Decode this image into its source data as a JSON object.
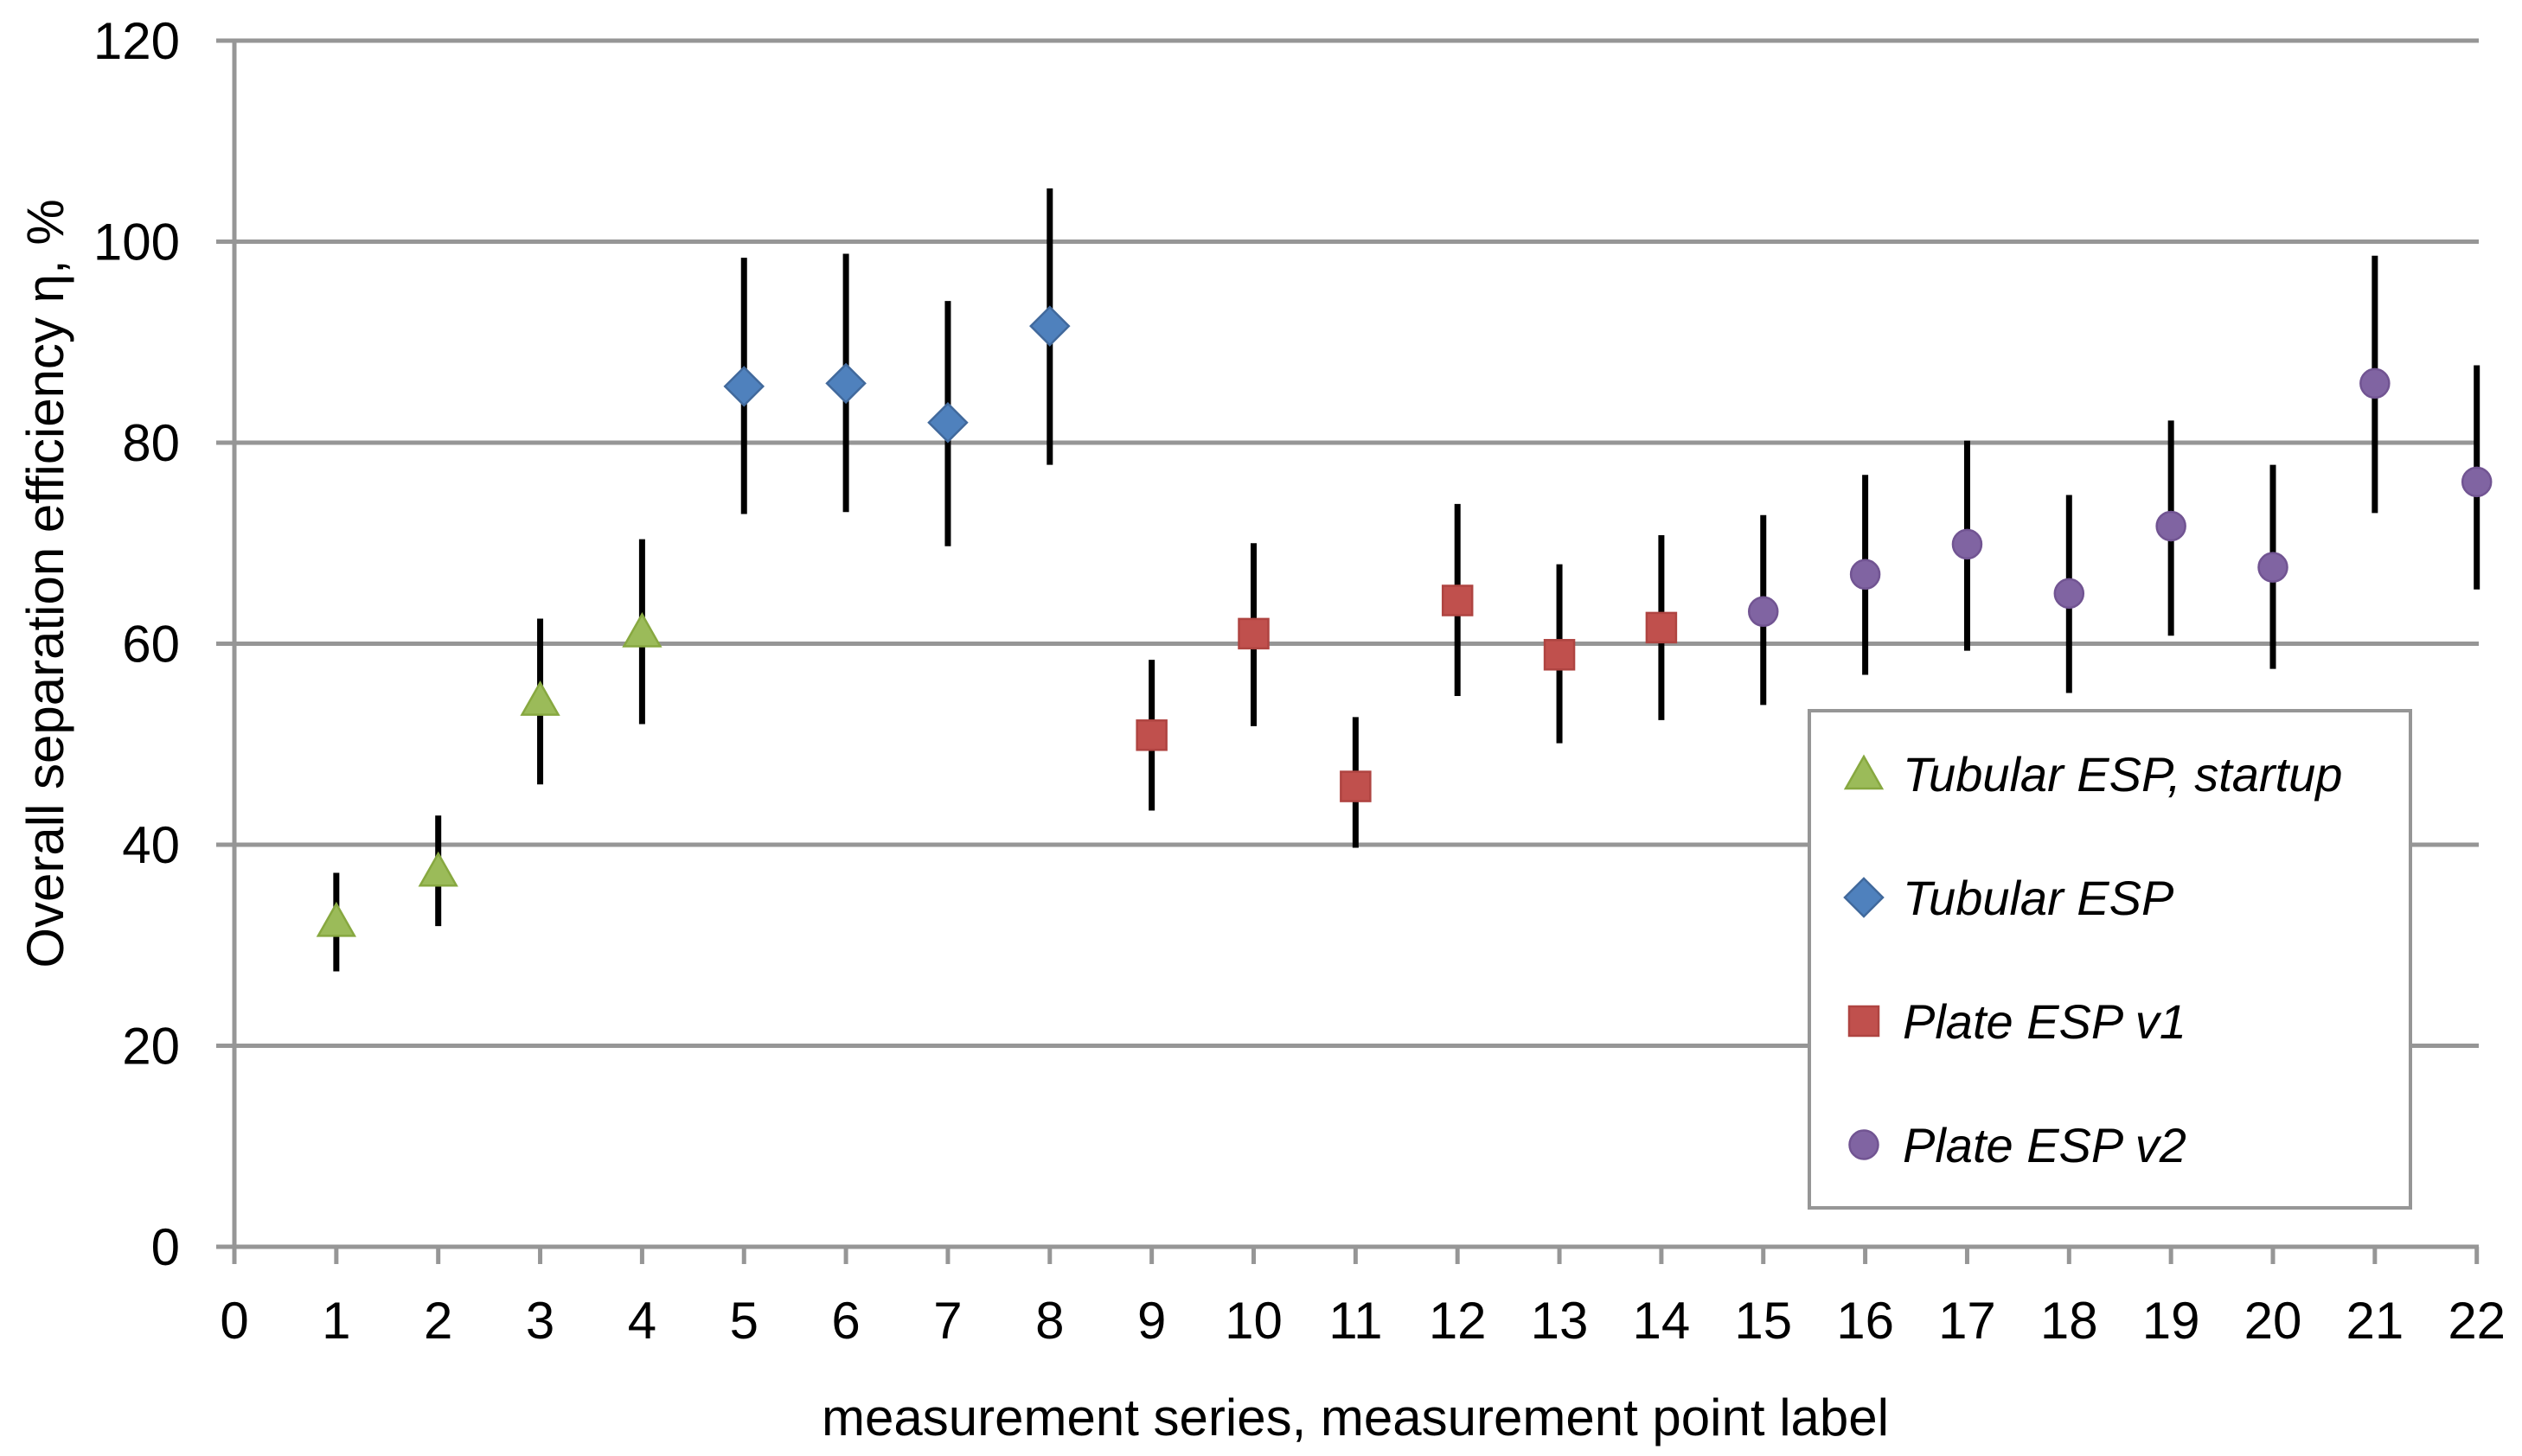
{
  "chart_data": {
    "type": "scatter",
    "title": "",
    "xlabel": "measurement series, measurement point label",
    "ylabel": "Overall separation efficiency η, %",
    "xlim": [
      0,
      22
    ],
    "ylim": [
      0,
      120
    ],
    "x_ticks": [
      0,
      1,
      2,
      3,
      4,
      5,
      6,
      7,
      8,
      9,
      10,
      11,
      12,
      13,
      14,
      15,
      16,
      17,
      18,
      19,
      20,
      21,
      22
    ],
    "y_ticks": [
      0,
      20,
      40,
      60,
      80,
      100,
      120
    ],
    "grid": "horizontal",
    "grid_color": "#969696",
    "error_bar_color": "#000000",
    "legend_position": "inside-right",
    "series": [
      {
        "name": "Tubular ESP, startup",
        "marker": "triangle",
        "color": "#9BBB59",
        "border": "#87A840",
        "points": [
          {
            "x": 1,
            "y": 32.4,
            "lo": 27.4,
            "hi": 37.2
          },
          {
            "x": 2,
            "y": 37.4,
            "lo": 31.9,
            "hi": 42.9
          },
          {
            "x": 3,
            "y": 54.4,
            "lo": 46.0,
            "hi": 62.5
          },
          {
            "x": 4,
            "y": 61.2,
            "lo": 52.0,
            "hi": 70.4
          }
        ]
      },
      {
        "name": "Tubular ESP",
        "marker": "diamond",
        "color": "#4F81BD",
        "border": "#41699C",
        "points": [
          {
            "x": 5,
            "y": 85.6,
            "lo": 72.9,
            "hi": 98.4
          },
          {
            "x": 6,
            "y": 85.9,
            "lo": 73.1,
            "hi": 98.8
          },
          {
            "x": 7,
            "y": 82.0,
            "lo": 69.7,
            "hi": 94.1
          },
          {
            "x": 8,
            "y": 91.6,
            "lo": 77.8,
            "hi": 105.3
          }
        ]
      },
      {
        "name": "Plate ESP v1",
        "marker": "square",
        "color": "#C0504D",
        "border": "#AF4441",
        "points": [
          {
            "x": 9,
            "y": 50.9,
            "lo": 43.4,
            "hi": 58.4
          },
          {
            "x": 10,
            "y": 61.0,
            "lo": 51.8,
            "hi": 70.0
          },
          {
            "x": 11,
            "y": 45.8,
            "lo": 39.7,
            "hi": 52.7
          },
          {
            "x": 12,
            "y": 64.3,
            "lo": 54.8,
            "hi": 73.9
          },
          {
            "x": 13,
            "y": 58.9,
            "lo": 50.1,
            "hi": 67.9
          },
          {
            "x": 14,
            "y": 61.6,
            "lo": 52.4,
            "hi": 70.8
          }
        ]
      },
      {
        "name": "Plate ESP v2",
        "marker": "circle",
        "color": "#8064A2",
        "border": "#715492",
        "points": [
          {
            "x": 15,
            "y": 63.2,
            "lo": 53.9,
            "hi": 72.8
          },
          {
            "x": 16,
            "y": 66.9,
            "lo": 56.9,
            "hi": 76.8
          },
          {
            "x": 17,
            "y": 69.9,
            "lo": 59.3,
            "hi": 80.2
          },
          {
            "x": 18,
            "y": 65.0,
            "lo": 55.1,
            "hi": 74.8
          },
          {
            "x": 19,
            "y": 71.7,
            "lo": 60.8,
            "hi": 82.2
          },
          {
            "x": 20,
            "y": 67.6,
            "lo": 57.5,
            "hi": 77.8
          },
          {
            "x": 21,
            "y": 85.9,
            "lo": 73.0,
            "hi": 98.6
          },
          {
            "x": 22,
            "y": 76.1,
            "lo": 65.4,
            "hi": 87.7
          }
        ]
      }
    ]
  }
}
